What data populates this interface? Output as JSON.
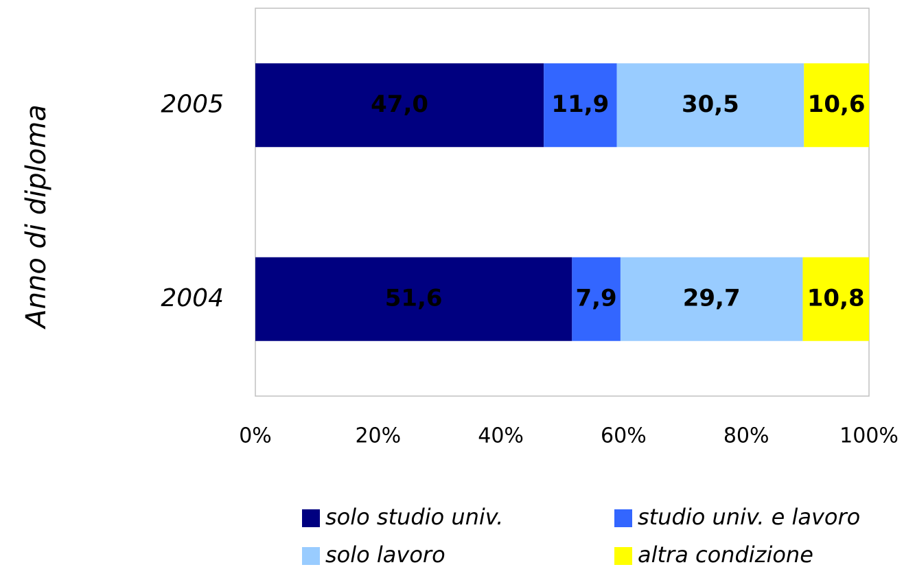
{
  "chart_data": {
    "type": "stacked-barh",
    "y_label": "Anno di diploma",
    "categories": [
      "2005",
      "2004"
    ],
    "series": [
      {
        "name": "solo studio univ.",
        "color": "#000080",
        "values": [
          47.0,
          51.6
        ],
        "value_labels": [
          "47,0",
          "51,6"
        ]
      },
      {
        "name": "studio univ. e lavoro",
        "color": "#3366ff",
        "values": [
          11.9,
          7.9
        ],
        "value_labels": [
          "11,9",
          "7,9"
        ]
      },
      {
        "name": "solo lavoro",
        "color": "#99ccff",
        "values": [
          30.5,
          29.7
        ],
        "value_labels": [
          "30,5",
          "29,7"
        ]
      },
      {
        "name": "altra condizione",
        "color": "#ffff00",
        "values": [
          10.6,
          10.8
        ],
        "value_labels": [
          "10,6",
          "10,8"
        ]
      }
    ],
    "xlim": [
      0,
      100
    ],
    "xticks": [
      {
        "value": 0,
        "label": "0%"
      },
      {
        "value": 20,
        "label": "20%"
      },
      {
        "value": 40,
        "label": "40%"
      },
      {
        "value": 60,
        "label": "60%"
      },
      {
        "value": 80,
        "label": "80%"
      },
      {
        "value": 100,
        "label": "100%"
      }
    ],
    "grid": false,
    "legend": "bottom"
  }
}
